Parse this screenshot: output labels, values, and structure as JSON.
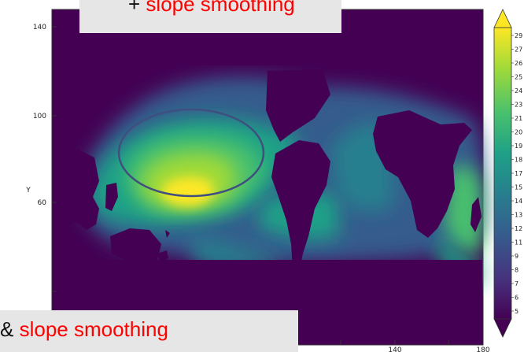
{
  "chart_data": {
    "type": "heatmap",
    "title": "",
    "xlabel": "",
    "ylabel": "Y",
    "x_ticks": [
      "140",
      "180"
    ],
    "y_ticks": [
      "140",
      "100",
      "60"
    ],
    "colorbar_ticks": [
      "29",
      "27",
      "26",
      "25",
      "24",
      "23",
      "21",
      "20",
      "19",
      "18",
      "17",
      "15",
      "14",
      "13",
      "12",
      "11",
      "9",
      "8",
      "7",
      "6",
      "5"
    ],
    "colorbar_range": [
      5,
      29
    ],
    "colormap": [
      "#440154",
      "#46337e",
      "#365c8d",
      "#277f8e",
      "#1fa187",
      "#4ac16d",
      "#a0da39",
      "#fde725"
    ],
    "land_color": "#440154",
    "annotation": "ellipse highlighting maximum over the tropical western Pacific"
  },
  "overlays": {
    "top": {
      "prefix": "+ ",
      "highlight": "slope smoothing"
    },
    "bottom": {
      "prefix": "& ",
      "highlight": "slope smoothing"
    }
  },
  "colors": {
    "highlight": "#ff0000",
    "overlay_bg": "#e6e6e6",
    "ellipse": "#3f4f7f"
  }
}
